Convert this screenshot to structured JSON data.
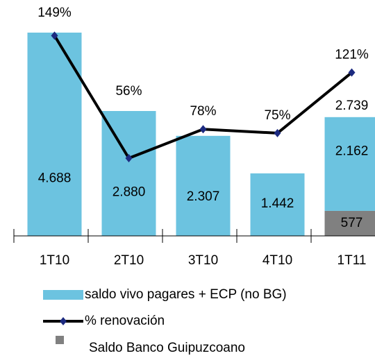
{
  "chart_data": {
    "type": "bar-line",
    "categories": [
      "1T10",
      "2T10",
      "3T10",
      "4T10",
      "1T11"
    ],
    "series": [
      {
        "name": "saldo vivo pagares + ECP (no BG)",
        "type": "bar",
        "color": "#6cc3e0",
        "values": [
          4688,
          2880,
          2307,
          1442,
          2162
        ],
        "value_labels": [
          "4.688",
          "2.880",
          "2.307",
          "1.442",
          "2.162"
        ]
      },
      {
        "name": "% renovación",
        "type": "line",
        "axis": "y2",
        "color": "#000000",
        "marker_color": "#1c2a80",
        "values": [
          149,
          56,
          78,
          75,
          121
        ],
        "value_labels": [
          "149%",
          "56%",
          "78%",
          "75%",
          "121%"
        ]
      },
      {
        "name": "Saldo Banco Guipuzcoano",
        "type": "bar",
        "color": "#808080",
        "values": [
          null,
          null,
          null,
          null,
          577
        ],
        "value_labels": [
          null,
          null,
          null,
          null,
          "577"
        ]
      }
    ],
    "total_labels": [
      null,
      null,
      null,
      null,
      "2.739"
    ],
    "ylim": [
      0,
      4800
    ],
    "y2lim": [
      -3,
      155
    ]
  }
}
